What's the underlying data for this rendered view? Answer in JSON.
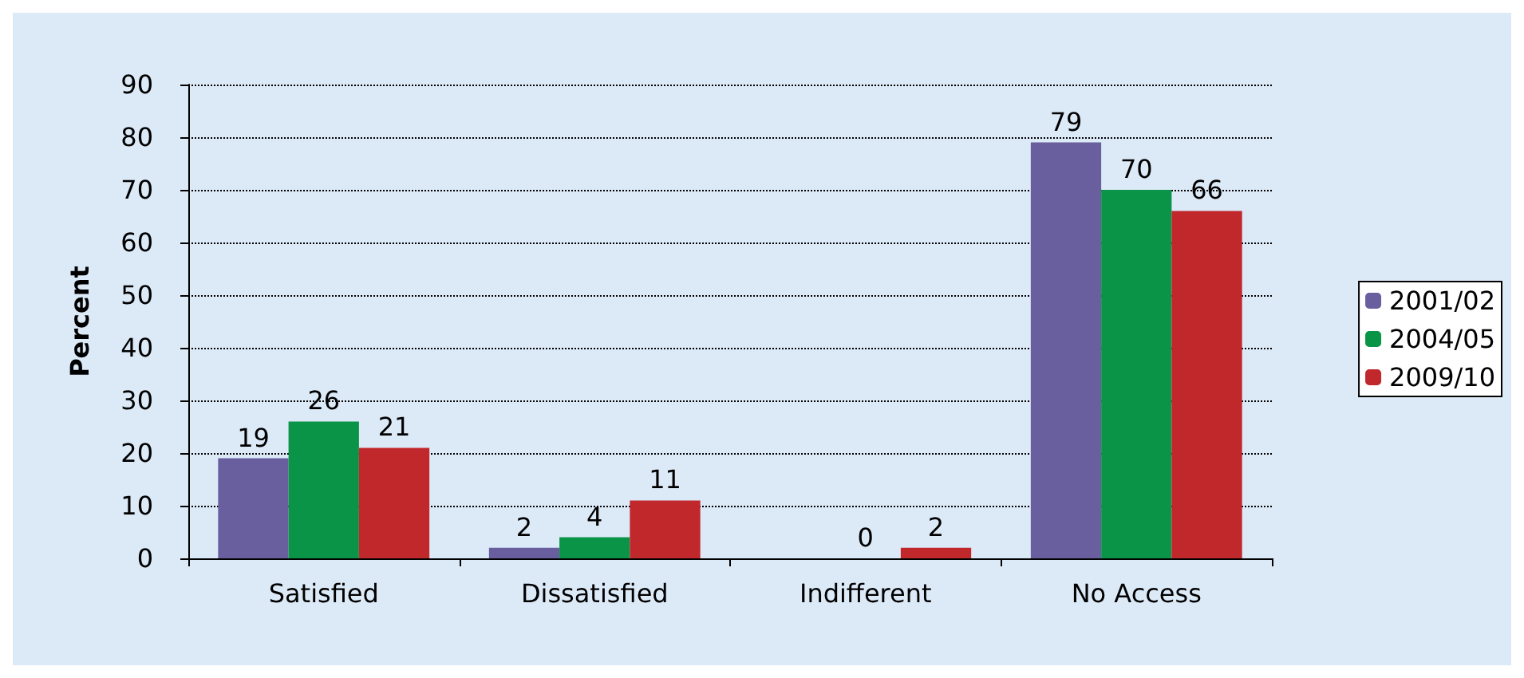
{
  "chart_data": {
    "type": "bar",
    "ylabel": "Percent",
    "categories": [
      "Satisfied",
      "Dissatisfied",
      "Indifferent",
      "No Access"
    ],
    "series": [
      {
        "name": "2001/02",
        "color": "#6a5f9e",
        "values": [
          19,
          2,
          null,
          79
        ]
      },
      {
        "name": "2004/05",
        "color": "#0a9447",
        "values": [
          26,
          4,
          0,
          70
        ]
      },
      {
        "name": "2009/10",
        "color": "#c0282b",
        "values": [
          21,
          11,
          2,
          66
        ]
      }
    ],
    "ylim": [
      0,
      90
    ],
    "yticks": [
      0,
      10,
      20,
      30,
      40,
      50,
      60,
      70,
      80,
      90
    ],
    "grid": "y",
    "legend": "right",
    "data_labels": true
  }
}
